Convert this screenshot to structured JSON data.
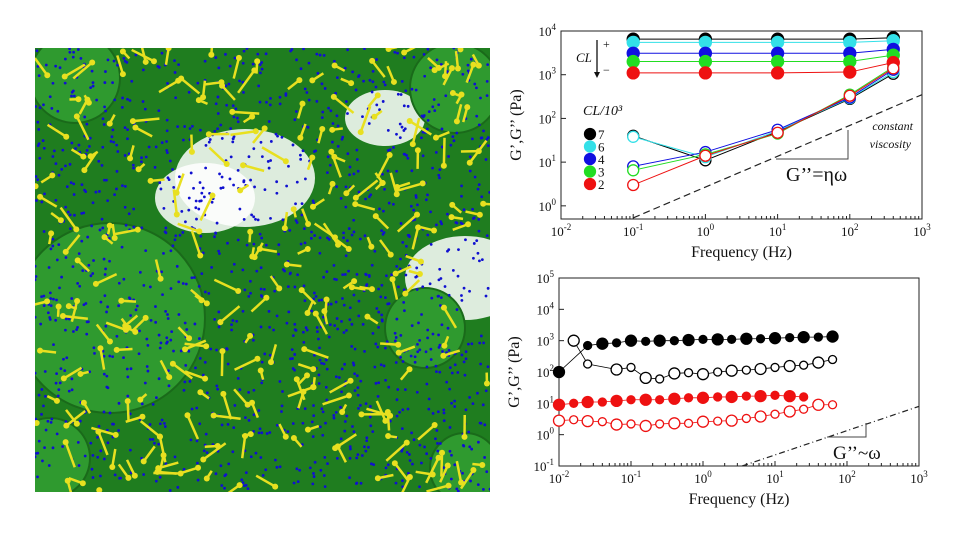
{
  "render": {
    "description_colors": {
      "background": "#1f7d1f",
      "sphere": "#2f9a2f",
      "dots": "#1010d0",
      "sticks": "#e8e020",
      "voids": "#ffffff"
    }
  },
  "chart_data": [
    {
      "type": "line",
      "xlabel": "Frequency (Hz)",
      "ylabel": "G’,G’’ (Pa)",
      "xscale": "log",
      "yscale": "log",
      "xlim": [
        0.01,
        1000
      ],
      "ylim": [
        0.5,
        10000
      ],
      "xticks": [
        "10-2",
        "10-1",
        "100",
        "101",
        "102",
        "103"
      ],
      "yticks": [
        "100",
        "101",
        "102",
        "103",
        "104"
      ],
      "legend_title": "CL/10³",
      "legend_placement": "left",
      "cl_arrow": {
        "label": "CL",
        "plus": "+",
        "minus": "−"
      },
      "x": [
        0.1,
        1,
        10,
        100,
        400
      ],
      "series": [
        {
          "name": "7",
          "color": "#000000",
          "Gp": [
            6500,
            6500,
            6500,
            6500,
            7000
          ],
          "Gpp": [
            40,
            11,
            50,
            280,
            1050
          ]
        },
        {
          "name": "6",
          "color": "#33e0e8",
          "Gp": [
            5500,
            5500,
            5500,
            5500,
            6000
          ],
          "Gpp": [
            38,
            13,
            52,
            290,
            1150
          ]
        },
        {
          "name": "4",
          "color": "#1010e0",
          "Gp": [
            3100,
            3100,
            3100,
            3100,
            3800
          ],
          "Gpp": [
            8,
            17,
            55,
            300,
            1300
          ]
        },
        {
          "name": "3",
          "color": "#22dd22",
          "Gp": [
            2000,
            2000,
            2000,
            2000,
            2800
          ],
          "Gpp": [
            6.5,
            15,
            45,
            350,
            1500
          ]
        },
        {
          "name": "2",
          "color": "#ee1111",
          "Gp": [
            1100,
            1100,
            1100,
            1150,
            1900
          ],
          "Gpp": [
            3,
            14,
            47,
            330,
            1400
          ]
        }
      ],
      "reference_line": {
        "style": "dashed",
        "points": [
          [
            0.1,
            0.53
          ],
          [
            1000,
            350
          ]
        ],
        "label": "G’’=ηω",
        "annotation": [
          "constant",
          "viscosity"
        ]
      }
    },
    {
      "type": "line",
      "xlabel": "Frequency (Hz)",
      "ylabel": "G’,G’’ (Pa)",
      "xscale": "log",
      "yscale": "log",
      "xlim": [
        0.01,
        1000
      ],
      "ylim": [
        0.1,
        100000
      ],
      "xticks": [
        "10-2",
        "10-1",
        "100",
        "101",
        "102",
        "103"
      ],
      "yticks": [
        "10-1",
        "100",
        "101",
        "102",
        "103",
        "104",
        "105"
      ],
      "series": [
        {
          "color": "#000000",
          "filled": true,
          "x": [
            0.01,
            0.025,
            0.04,
            0.063,
            0.1,
            0.16,
            0.25,
            0.4,
            0.63,
            1,
            1.6,
            2.5,
            4,
            6.3,
            10,
            16,
            25,
            40,
            63
          ],
          "y": [
            100,
            700,
            800,
            850,
            1000,
            950,
            1000,
            1000,
            1050,
            1100,
            1100,
            1100,
            1150,
            1150,
            1200,
            1250,
            1300,
            1300,
            1350
          ]
        },
        {
          "color": "#000000",
          "filled": false,
          "x": [
            0.016,
            0.025,
            0.063,
            0.1,
            0.16,
            0.25,
            0.4,
            0.63,
            1,
            1.6,
            2.5,
            4,
            6.3,
            10,
            16,
            25,
            40,
            63
          ],
          "y": [
            1000,
            180,
            120,
            140,
            65,
            60,
            90,
            95,
            85,
            100,
            110,
            115,
            125,
            140,
            155,
            165,
            200,
            250
          ]
        },
        {
          "color": "#ee1111",
          "filled": true,
          "x": [
            0.01,
            0.016,
            0.025,
            0.04,
            0.063,
            0.1,
            0.16,
            0.25,
            0.4,
            0.63,
            1,
            1.6,
            2.5,
            4,
            6.3,
            10,
            16,
            25
          ],
          "y": [
            9,
            10,
            11,
            11,
            12,
            13,
            13,
            13,
            14,
            15,
            15,
            16,
            16,
            17,
            17,
            18,
            17,
            16
          ]
        },
        {
          "color": "#ee1111",
          "filled": false,
          "x": [
            0.01,
            0.016,
            0.025,
            0.04,
            0.063,
            0.1,
            0.16,
            0.25,
            0.4,
            0.63,
            1,
            1.6,
            2.5,
            4,
            6.3,
            10,
            16,
            25,
            40,
            63
          ],
          "y": [
            2.8,
            3,
            2.7,
            2.6,
            2.1,
            2.2,
            1.9,
            2.2,
            2.3,
            2.3,
            2.6,
            2.7,
            2.8,
            3.3,
            3.8,
            4.5,
            5.5,
            6.5,
            9,
            9
          ]
        }
      ],
      "reference_line": {
        "style": "dash-dot",
        "points": [
          [
            3.5,
            0.1
          ],
          [
            1000,
            8
          ]
        ],
        "label": "G’’~ω"
      }
    }
  ]
}
